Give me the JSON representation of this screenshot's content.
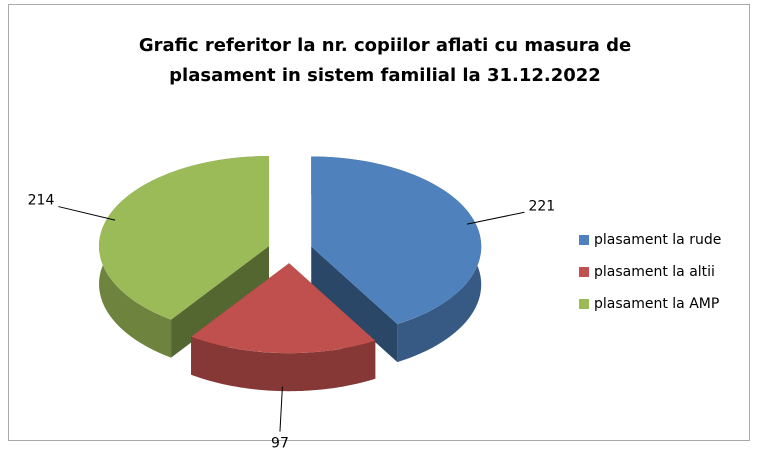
{
  "chart_data": {
    "type": "pie",
    "title": [
      "Grafic referitor la nr. copiilor aflati cu masura de",
      "plasament in sistem familial la 31.12.2022"
    ],
    "categories": [
      "plasament la rude",
      "plasament la altii",
      "plasament la AMP"
    ],
    "values": [
      221,
      97,
      214
    ],
    "colors": [
      "#4f81bd",
      "#c0504d",
      "#9bbb59"
    ],
    "legend": "right"
  }
}
